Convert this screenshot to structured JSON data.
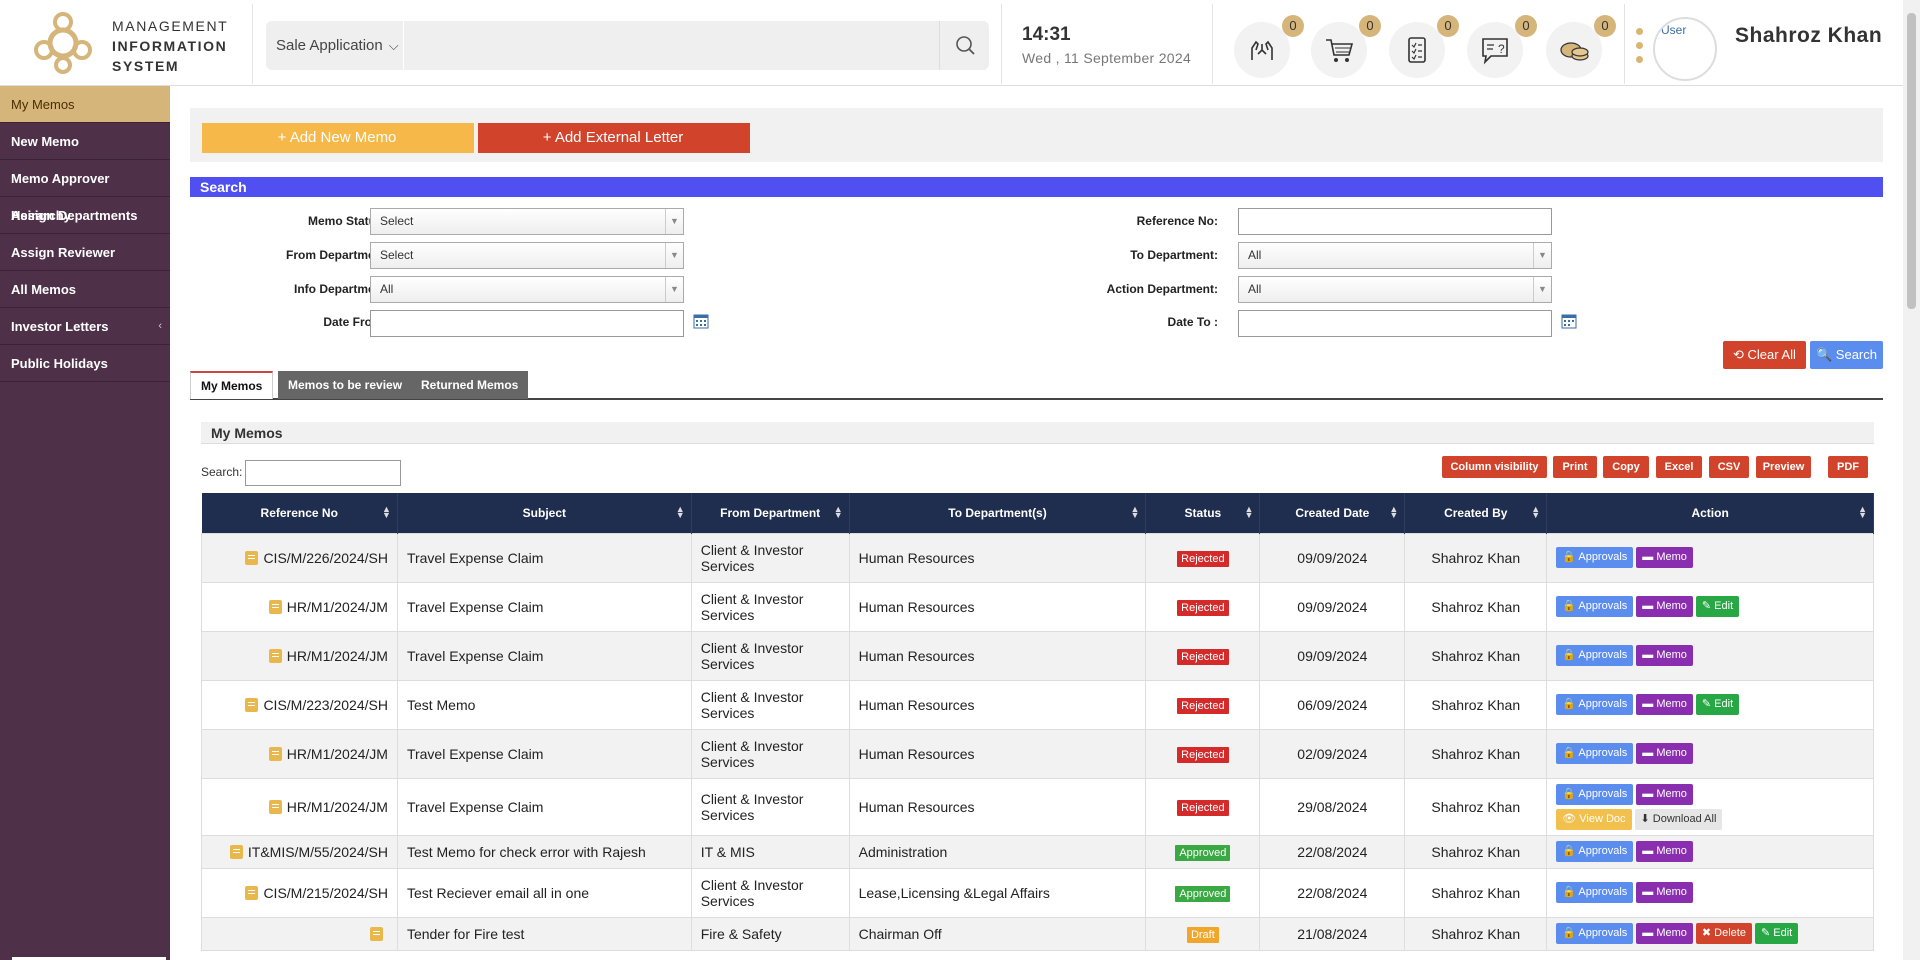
{
  "header": {
    "logo_line1": "MANAGEMENT",
    "logo_line2": "INFORMATION",
    "logo_line3": "SYSTEM",
    "search_scope": "Sale Application",
    "search_placeholder": "",
    "time": "14:31",
    "date": "Wed , 11 September 2024",
    "icons": [
      {
        "name": "hands-icon",
        "count": "0"
      },
      {
        "name": "cart-icon",
        "count": "0"
      },
      {
        "name": "checklist-icon",
        "count": "0"
      },
      {
        "name": "question-icon",
        "count": "0"
      },
      {
        "name": "tokens-icon",
        "count": "0"
      }
    ],
    "avatar_alt": "User",
    "user_name": "Shahroz Khan"
  },
  "sidebar": {
    "items": [
      {
        "label": "My Memos",
        "active": true
      },
      {
        "label": "New Memo"
      },
      {
        "label": "Memo Approver Heirarchy"
      },
      {
        "label": "Assign Departments"
      },
      {
        "label": "Assign Reviewer"
      },
      {
        "label": "All Memos"
      },
      {
        "label": "Investor Letters",
        "chevron": "‹"
      },
      {
        "label": "Public Holidays"
      }
    ]
  },
  "toolbar": {
    "add_memo": "+ Add New Memo",
    "add_letter": "+ Add External Letter"
  },
  "search": {
    "heading": "Search",
    "memo_status_label": "Memo Status :",
    "memo_status_value": "Select",
    "from_dept_label": "From Department:",
    "from_dept_value": "Select",
    "info_dept_label": "Info Department:",
    "info_dept_value": "All",
    "date_from_label": "Date From :",
    "reference_label": "Reference No:",
    "to_dept_label": "To Department:",
    "to_dept_value": "All",
    "action_dept_label": "Action Department:",
    "action_dept_value": "All",
    "date_to_label": "Date To :",
    "clear_btn": "⟲ Clear All",
    "search_btn": "🔍 Search"
  },
  "tabs": {
    "my_memos": "My Memos",
    "to_review": "Memos to be review",
    "returned": "Returned Memos"
  },
  "table": {
    "title": "My Memos",
    "search_label": "Search:",
    "buttons": {
      "colvis": "Column visibility",
      "print": "Print",
      "copy": "Copy",
      "excel": "Excel",
      "csv": "CSV",
      "preview": "Preview",
      "pdf": "PDF"
    },
    "columns": [
      "Reference No",
      "Subject",
      "From Department",
      "To Department(s)",
      "Status",
      "Created Date",
      "Created By",
      "Action"
    ],
    "colors": {
      "rejected": "#d42a2a",
      "approved": "#3aa843",
      "draft": "#f0a52b"
    },
    "action_labels": {
      "approvals": "🔒 Approvals",
      "memo": "▬ Memo",
      "edit": "✎ Edit",
      "delete": "✖ Delete",
      "view_doc": "👁 View Doc",
      "download_all": "⬇ Download All"
    },
    "rows": [
      {
        "ref": "CIS/M/226/2024/SH",
        "subject": "Travel Expense Claim",
        "from": "Client & Investor Services",
        "to": "Human Resources",
        "status": "Rejected",
        "date": "09/09/2024",
        "by": "Shahroz Khan"
      },
      {
        "ref": "HR/M1/2024/JM",
        "subject": "Travel Expense Claim",
        "from": "Client & Investor Services",
        "to": "Human Resources",
        "status": "Rejected",
        "date": "09/09/2024",
        "by": "Shahroz Khan"
      },
      {
        "ref": "HR/M1/2024/JM",
        "subject": "Travel Expense Claim",
        "from": "Client & Investor Services",
        "to": "Human Resources",
        "status": "Rejected",
        "date": "09/09/2024",
        "by": "Shahroz Khan"
      },
      {
        "ref": "CIS/M/223/2024/SH",
        "subject": "Test Memo",
        "from": "Client & Investor Services",
        "to": "Human Resources",
        "status": "Rejected",
        "date": "06/09/2024",
        "by": "Shahroz Khan"
      },
      {
        "ref": "HR/M1/2024/JM",
        "subject": "Travel Expense Claim",
        "from": "Client & Investor Services",
        "to": "Human Resources",
        "status": "Rejected",
        "date": "02/09/2024",
        "by": "Shahroz Khan"
      },
      {
        "ref": "HR/M1/2024/JM",
        "subject": "Travel Expense Claim",
        "from": "Client & Investor Services",
        "to": "Human Resources",
        "status": "Rejected",
        "date": "29/08/2024",
        "by": "Shahroz Khan"
      },
      {
        "ref": "IT&MIS/M/55/2024/SH",
        "subject": "Test Memo for check error with Rajesh",
        "from": "IT & MIS",
        "to": "Administration",
        "status": "Approved",
        "date": "22/08/2024",
        "by": "Shahroz Khan"
      },
      {
        "ref": "CIS/M/215/2024/SH",
        "subject": "Test Reciever email all in one",
        "from": "Client & Investor Services",
        "to": "Lease,Licensing &Legal Affairs",
        "status": "Approved",
        "date": "22/08/2024",
        "by": "Shahroz Khan"
      },
      {
        "ref": "",
        "subject": "Tender for Fire test",
        "from": "Fire & Safety",
        "to": "Chairman Off",
        "status": "Draft",
        "date": "21/08/2024",
        "by": "Shahroz Khan"
      }
    ]
  }
}
